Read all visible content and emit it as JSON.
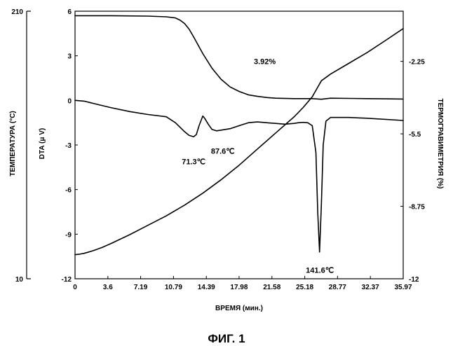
{
  "chart_data": {
    "type": "line",
    "figure_caption": "ФИГ. 1",
    "xlabel": "ВРЕМЯ (мин.)",
    "xlim": [
      0,
      35.97
    ],
    "x_ticks": [
      "0",
      "3.6",
      "7.19",
      "10.79",
      "14.39",
      "17.98",
      "21.58",
      "25.18",
      "28.77",
      "32.37",
      "35.97"
    ],
    "axes": {
      "temperature": {
        "label": "ТЕМПЕРАТУРА (°C)",
        "range": [
          10,
          210
        ],
        "tick_labels": [
          "210",
          "10"
        ]
      },
      "dta": {
        "label": "DTA (μ V)",
        "range": [
          -12,
          6
        ],
        "tick_labels": [
          "6",
          "3",
          "0",
          "-3",
          "-6",
          "-9",
          "-12"
        ]
      },
      "tg": {
        "label": "ТЕРМОГРАВИМЕТРИЯ (%)",
        "range": [
          -12,
          0
        ],
        "tick_labels": [
          "-2.25",
          "-5.5",
          "-8.75",
          "-12"
        ]
      }
    },
    "series": [
      {
        "axis": "temperature",
        "x": [
          0,
          0.5,
          1,
          2,
          3,
          4,
          6,
          8,
          10,
          12,
          14,
          16,
          18,
          20,
          22,
          24,
          25,
          26,
          27,
          28,
          30,
          32,
          34,
          35.97
        ],
        "y": [
          28,
          28.4,
          29,
          31,
          33.5,
          36.5,
          43,
          50,
          57,
          65,
          74,
          84,
          95,
          107,
          119,
          131,
          138,
          146,
          158,
          163,
          171,
          179,
          188,
          197
        ]
      },
      {
        "axis": "dta",
        "x": [
          0,
          1,
          2,
          4,
          6,
          8,
          10,
          11,
          12,
          12.5,
          13,
          13.3,
          13.6,
          14,
          14.2,
          14.6,
          15,
          15.5,
          16,
          17,
          18,
          19,
          20,
          21,
          22,
          23,
          24,
          24.5,
          25,
          25.5,
          26,
          26.4,
          26.6,
          26.8,
          27,
          27.2,
          27.5,
          28,
          30,
          32,
          35.97
        ],
        "y": [
          0,
          -0.05,
          -0.2,
          -0.5,
          -0.75,
          -0.95,
          -1.1,
          -1.5,
          -2.1,
          -2.35,
          -2.45,
          -2.3,
          -1.7,
          -1.05,
          -1.2,
          -1.6,
          -1.95,
          -2.05,
          -2.0,
          -1.9,
          -1.7,
          -1.5,
          -1.45,
          -1.5,
          -1.55,
          -1.6,
          -1.55,
          -1.5,
          -1.48,
          -1.5,
          -1.7,
          -3.5,
          -7.5,
          -10.2,
          -7.0,
          -3.0,
          -1.4,
          -1.15,
          -1.15,
          -1.2,
          -1.35
        ]
      },
      {
        "axis": "tg",
        "x": [
          0,
          4,
          8,
          10,
          11,
          11.5,
          12,
          12.5,
          13,
          14,
          15,
          16,
          17,
          18,
          19,
          20,
          21,
          22,
          24,
          26,
          27,
          28,
          30,
          32,
          34,
          35.97
        ],
        "y": [
          -0.2,
          -0.2,
          -0.22,
          -0.25,
          -0.3,
          -0.4,
          -0.55,
          -0.8,
          -1.15,
          -1.9,
          -2.55,
          -3.05,
          -3.4,
          -3.6,
          -3.75,
          -3.82,
          -3.87,
          -3.9,
          -3.92,
          -3.92,
          -3.95,
          -3.9,
          -3.91,
          -3.92,
          -3.93,
          -3.94
        ]
      }
    ],
    "annotations": [
      {
        "text": "3.92%",
        "x": 19.6,
        "axis": "dta",
        "y": 2.45
      },
      {
        "text": "71.3℃",
        "x": 11.7,
        "axis": "dta",
        "y": -4.3
      },
      {
        "text": "87.6℃",
        "x": 14.9,
        "axis": "dta",
        "y": -3.6
      },
      {
        "text": "141.6℃",
        "x": 25.3,
        "axis": "dta",
        "y": -11.6
      }
    ]
  }
}
